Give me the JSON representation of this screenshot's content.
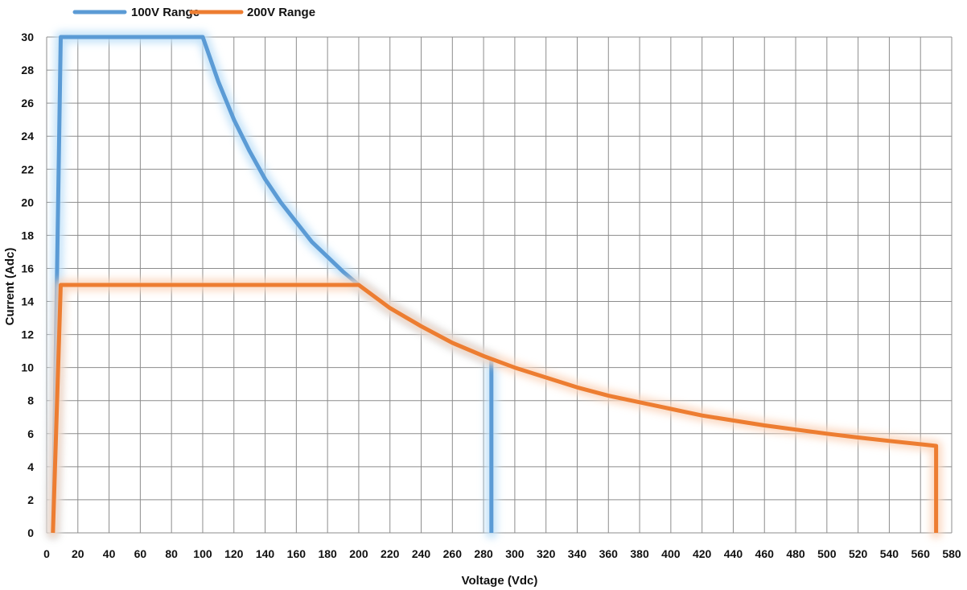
{
  "chart_data": {
    "type": "line",
    "xlabel": "Voltage (Vdc)",
    "ylabel": "Current (Adc)",
    "xlim": [
      0,
      580
    ],
    "ylim": [
      0,
      30
    ],
    "x_ticks": [
      "0",
      "20",
      "40",
      "60",
      "80",
      "100",
      "120",
      "140",
      "160",
      "180",
      "200",
      "220",
      "240",
      "260",
      "280",
      "300",
      "320",
      "340",
      "360",
      "380",
      "400",
      "420",
      "440",
      "460",
      "480",
      "500",
      "520",
      "540",
      "560",
      "580"
    ],
    "y_ticks": [
      "0",
      "2",
      "4",
      "6",
      "8",
      "10",
      "12",
      "14",
      "16",
      "18",
      "20",
      "22",
      "24",
      "26",
      "28",
      "30"
    ],
    "grid": true,
    "legend_position": "top-left",
    "series": [
      {
        "name": "100V Range",
        "color": "#5b9bd5",
        "glow": "#bfe0f8",
        "x": [
          4,
          9,
          100,
          110,
          120,
          130,
          140,
          150,
          160,
          170,
          180,
          190,
          200,
          220,
          240,
          260,
          280,
          285,
          285
        ],
        "y": [
          0,
          30,
          30,
          27.3,
          25,
          23.1,
          21.4,
          20,
          18.8,
          17.6,
          16.7,
          15.8,
          15,
          13.6,
          12.5,
          11.5,
          10.7,
          10.5,
          0
        ]
      },
      {
        "name": "200V Range",
        "color": "#ed7d31",
        "glow": "#fbd6bd",
        "x": [
          4,
          9,
          200,
          220,
          240,
          260,
          280,
          300,
          320,
          340,
          360,
          380,
          400,
          420,
          440,
          460,
          480,
          500,
          520,
          540,
          560,
          570,
          570
        ],
        "y": [
          0,
          15,
          15,
          13.6,
          12.5,
          11.5,
          10.7,
          10,
          9.4,
          8.8,
          8.3,
          7.9,
          7.5,
          7.1,
          6.8,
          6.5,
          6.25,
          6,
          5.77,
          5.56,
          5.36,
          5.26,
          0
        ]
      }
    ]
  }
}
